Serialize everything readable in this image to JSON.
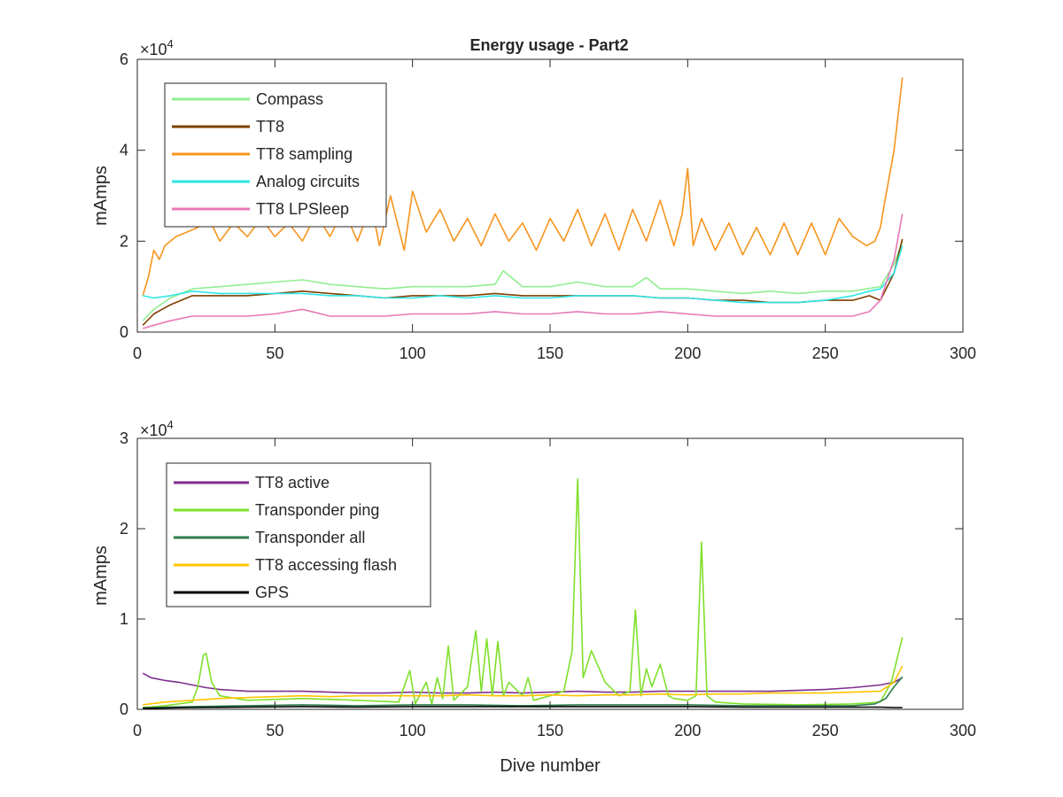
{
  "figure": {
    "background": "#ffffff"
  },
  "chart_data": [
    {
      "type": "line",
      "title": "Energy usage - Part2",
      "xlabel": "",
      "ylabel": "mAmps",
      "exponent_label": "×10",
      "exponent_power": "4",
      "xlim": [
        0,
        300
      ],
      "ylim": [
        0,
        60000
      ],
      "xticks": [
        0,
        50,
        100,
        150,
        200,
        250,
        300
      ],
      "yticks": [
        0,
        20000,
        40000,
        60000
      ],
      "ytick_labels": [
        "0",
        "2",
        "4",
        "6"
      ],
      "xtick_labels": [
        "0",
        "50",
        "100",
        "150",
        "200",
        "250",
        "300"
      ],
      "grid": false,
      "legend_position": "top-left",
      "series": [
        {
          "name": "Compass",
          "color": "#90ee90",
          "x": [
            2,
            6,
            12,
            20,
            30,
            40,
            50,
            60,
            70,
            80,
            90,
            100,
            110,
            120,
            130,
            133,
            140,
            150,
            160,
            170,
            180,
            185,
            190,
            200,
            210,
            220,
            230,
            240,
            250,
            260,
            265,
            270,
            275,
            278
          ],
          "y": [
            2500,
            5000,
            7500,
            9500,
            10000,
            10500,
            11000,
            11500,
            10500,
            10000,
            9500,
            10000,
            10000,
            10000,
            10500,
            13500,
            10000,
            10000,
            11000,
            10000,
            10000,
            12000,
            9500,
            9500,
            9000,
            8500,
            9000,
            8500,
            9000,
            9000,
            9500,
            10000,
            15000,
            20000
          ]
        },
        {
          "name": "TT8",
          "color": "#7f3f00",
          "x": [
            2,
            6,
            12,
            20,
            30,
            40,
            50,
            60,
            70,
            80,
            90,
            100,
            110,
            120,
            130,
            140,
            150,
            160,
            170,
            180,
            190,
            200,
            210,
            220,
            230,
            240,
            250,
            260,
            266,
            270,
            275,
            278
          ],
          "y": [
            1500,
            4000,
            6000,
            8000,
            8000,
            8000,
            8500,
            9000,
            8500,
            8000,
            7500,
            8000,
            8000,
            8000,
            8500,
            8000,
            8000,
            8000,
            8000,
            8000,
            7500,
            7500,
            7000,
            7000,
            6500,
            6500,
            7000,
            7000,
            8000,
            7000,
            13000,
            20500
          ]
        },
        {
          "name": "TT8 sampling",
          "color": "#f7941d",
          "x": [
            2,
            4,
            6,
            8,
            10,
            14,
            18,
            22,
            26,
            30,
            35,
            40,
            45,
            50,
            55,
            60,
            65,
            70,
            75,
            80,
            85,
            88,
            92,
            97,
            100,
            105,
            110,
            115,
            120,
            125,
            130,
            135,
            140,
            145,
            150,
            155,
            160,
            165,
            170,
            175,
            180,
            185,
            190,
            195,
            198,
            200,
            202,
            205,
            210,
            215,
            220,
            225,
            230,
            235,
            240,
            245,
            250,
            255,
            260,
            265,
            268,
            270,
            272,
            275,
            278
          ],
          "y": [
            8000,
            12000,
            18000,
            16000,
            19000,
            21000,
            22000,
            23000,
            25000,
            20000,
            24000,
            21000,
            25000,
            21000,
            24000,
            20000,
            26000,
            21000,
            27000,
            20000,
            28000,
            19000,
            30000,
            18000,
            31000,
            22000,
            27000,
            20000,
            25000,
            19000,
            26000,
            20000,
            24000,
            18000,
            25000,
            20000,
            27000,
            19000,
            26000,
            18000,
            27000,
            20000,
            29000,
            19000,
            26000,
            36000,
            19000,
            25000,
            18000,
            24000,
            17000,
            23000,
            17000,
            24000,
            17000,
            24000,
            17000,
            25000,
            21000,
            19000,
            20000,
            23000,
            30000,
            40000,
            56000
          ]
        },
        {
          "name": "Analog circuits",
          "color": "#2ee6e6",
          "x": [
            2,
            6,
            12,
            20,
            30,
            40,
            50,
            60,
            70,
            80,
            90,
            100,
            110,
            120,
            130,
            140,
            150,
            160,
            170,
            180,
            190,
            200,
            210,
            220,
            230,
            240,
            250,
            260,
            266,
            270,
            275,
            278
          ],
          "y": [
            8000,
            7500,
            8000,
            9000,
            8500,
            8500,
            8500,
            8500,
            8000,
            8000,
            7500,
            7500,
            8000,
            7500,
            8000,
            7500,
            7500,
            8000,
            8000,
            8000,
            7500,
            7500,
            7000,
            6500,
            6500,
            6500,
            7000,
            8000,
            9000,
            9500,
            13000,
            19000
          ]
        },
        {
          "name": "TT8 LPSleep",
          "color": "#e878b8",
          "x": [
            2,
            6,
            12,
            20,
            30,
            40,
            50,
            60,
            70,
            80,
            90,
            100,
            110,
            120,
            130,
            140,
            150,
            160,
            170,
            180,
            190,
            200,
            210,
            220,
            230,
            240,
            250,
            260,
            266,
            270,
            275,
            278
          ],
          "y": [
            800,
            1500,
            2500,
            3500,
            3500,
            3500,
            4000,
            5000,
            3500,
            3500,
            3500,
            4000,
            4000,
            4000,
            4500,
            4000,
            4000,
            4500,
            4000,
            4000,
            4500,
            4000,
            3500,
            3500,
            3500,
            3500,
            3500,
            3500,
            4500,
            7000,
            16000,
            26000
          ]
        }
      ]
    },
    {
      "type": "line",
      "title": "",
      "xlabel": "Dive number",
      "ylabel": "mAmps",
      "exponent_label": "×10",
      "exponent_power": "4",
      "xlim": [
        0,
        300
      ],
      "ylim": [
        0,
        30000
      ],
      "xticks": [
        0,
        50,
        100,
        150,
        200,
        250,
        300
      ],
      "yticks": [
        0,
        10000,
        20000,
        30000
      ],
      "ytick_labels": [
        "0",
        "1",
        "2",
        "3"
      ],
      "xtick_labels": [
        "0",
        "50",
        "100",
        "150",
        "200",
        "250",
        "300"
      ],
      "grid": false,
      "legend_position": "top-left",
      "series": [
        {
          "name": "TT8 active",
          "color": "#7e2f8e",
          "x": [
            2,
            5,
            10,
            15,
            20,
            25,
            30,
            40,
            50,
            60,
            70,
            80,
            90,
            100,
            110,
            120,
            130,
            140,
            150,
            160,
            170,
            180,
            190,
            200,
            210,
            220,
            230,
            240,
            250,
            260,
            270,
            275,
            278
          ],
          "y": [
            4000,
            3500,
            3200,
            3000,
            2700,
            2400,
            2200,
            2000,
            2000,
            2000,
            1900,
            1800,
            1800,
            1900,
            1800,
            1800,
            1900,
            1800,
            1900,
            2000,
            1900,
            1900,
            2000,
            2000,
            2000,
            2000,
            2000,
            2100,
            2200,
            2400,
            2700,
            3000,
            3500
          ]
        },
        {
          "name": "Transponder ping",
          "color": "#7fe02a",
          "x": [
            2,
            10,
            20,
            22,
            24,
            25,
            27,
            30,
            40,
            60,
            80,
            95,
            99,
            101,
            105,
            107,
            109,
            111,
            113,
            115,
            120,
            123,
            125,
            127,
            129,
            131,
            133,
            135,
            140,
            142,
            144,
            150,
            155,
            158,
            160,
            162,
            165,
            170,
            175,
            179,
            181,
            183,
            185,
            187,
            190,
            193,
            195,
            200,
            203,
            205,
            207,
            210,
            220,
            240,
            260,
            270,
            274,
            278
          ],
          "y": [
            200,
            400,
            800,
            2500,
            6000,
            6200,
            3000,
            1500,
            1000,
            1200,
            1000,
            800,
            4300,
            600,
            3000,
            600,
            3500,
            1200,
            7000,
            1000,
            2500,
            8700,
            2000,
            7800,
            1500,
            7500,
            1500,
            3000,
            1500,
            3500,
            1000,
            1500,
            2000,
            6500,
            25500,
            3500,
            6500,
            3000,
            1500,
            2000,
            11000,
            1500,
            4500,
            2500,
            5000,
            1500,
            1200,
            1000,
            1500,
            18500,
            1500,
            800,
            600,
            500,
            600,
            800,
            3000,
            8000
          ]
        },
        {
          "name": "Transponder all",
          "color": "#2e7d4f",
          "x": [
            2,
            20,
            40,
            60,
            80,
            100,
            120,
            140,
            160,
            180,
            200,
            220,
            240,
            260,
            268,
            272,
            275,
            278
          ],
          "y": [
            200,
            300,
            400,
            500,
            400,
            500,
            500,
            400,
            500,
            500,
            500,
            400,
            400,
            400,
            600,
            1200,
            2500,
            3600
          ]
        },
        {
          "name": "TT8 accessing flash",
          "color": "#ffc400",
          "x": [
            2,
            10,
            20,
            30,
            40,
            50,
            60,
            70,
            80,
            90,
            100,
            110,
            120,
            130,
            140,
            150,
            160,
            170,
            180,
            190,
            200,
            210,
            220,
            230,
            240,
            250,
            260,
            270,
            275,
            278
          ],
          "y": [
            500,
            800,
            1000,
            1200,
            1300,
            1400,
            1500,
            1400,
            1500,
            1500,
            1500,
            1500,
            1600,
            1500,
            1500,
            1600,
            1500,
            1600,
            1600,
            1700,
            1600,
            1700,
            1700,
            1800,
            1800,
            1800,
            1900,
            2000,
            3000,
            4800
          ]
        },
        {
          "name": "GPS",
          "color": "#000000",
          "x": [
            2,
            20,
            40,
            60,
            80,
            100,
            120,
            140,
            160,
            180,
            200,
            220,
            240,
            260,
            270,
            275,
            278
          ],
          "y": [
            100,
            200,
            250,
            300,
            250,
            300,
            300,
            300,
            300,
            300,
            300,
            250,
            250,
            250,
            250,
            200,
            200
          ]
        }
      ]
    }
  ]
}
